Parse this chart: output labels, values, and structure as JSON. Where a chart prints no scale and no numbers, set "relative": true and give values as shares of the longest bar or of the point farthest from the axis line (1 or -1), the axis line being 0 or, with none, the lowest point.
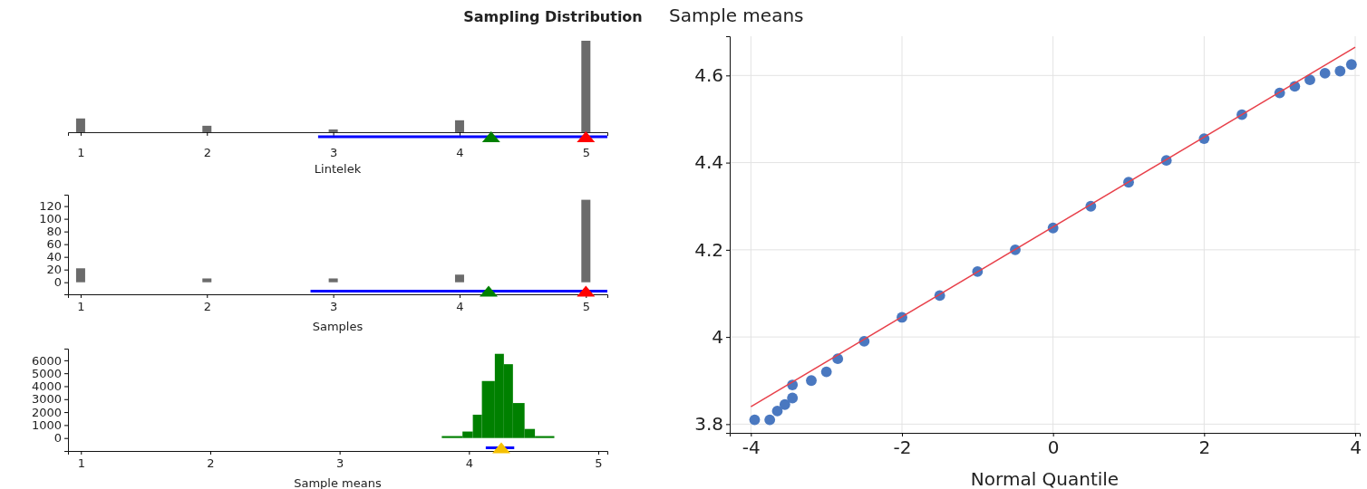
{
  "chart_data": [
    {
      "type": "bar",
      "title": "Sampling Distribution",
      "xlabel": "Lintelek",
      "relative": true,
      "tick_labels": "x",
      "xlim": [
        0.9,
        5.17
      ],
      "xticks": [
        1,
        2,
        3,
        4,
        5
      ],
      "grid": false,
      "series": [
        {
          "color": "#6b6b6b",
          "x": [
            1,
            2,
            3,
            4,
            5
          ],
          "values": [
            0.15,
            0.07,
            0.03,
            0.13,
            1
          ]
        },
        {
          "type": "line",
          "color": "#0000ff",
          "x": [
            2.88,
            5.17
          ],
          "values": [
            -0.05,
            -0.05
          ]
        },
        {
          "type": "scatter",
          "marker": "triangle",
          "color": "#008000",
          "x": [
            4.25
          ],
          "values": [
            -0.05
          ]
        },
        {
          "type": "scatter",
          "marker": "triangle",
          "color": "#ff0000",
          "x": [
            5
          ],
          "values": [
            -0.05
          ]
        }
      ]
    },
    {
      "type": "bar",
      "xlabel": "Samples",
      "xlim": [
        0.9,
        5.17
      ],
      "xticks": [
        1,
        2,
        3,
        4,
        5
      ],
      "ylim": [
        -19,
        138
      ],
      "yticks": [
        0,
        20,
        40,
        60,
        80,
        100,
        120
      ],
      "grid": false,
      "series": [
        {
          "color": "#6b6b6b",
          "x": [
            1,
            2,
            3,
            4,
            5
          ],
          "values": [
            22,
            6,
            6,
            12,
            130
          ]
        },
        {
          "type": "line",
          "color": "#0000ff",
          "x": [
            2.82,
            5.17
          ],
          "values": [
            -14,
            -14
          ]
        },
        {
          "type": "scatter",
          "marker": "triangle",
          "color": "#008000",
          "x": [
            4.23
          ],
          "values": [
            -14
          ]
        },
        {
          "type": "scatter",
          "marker": "triangle",
          "color": "#ff0000",
          "x": [
            5
          ],
          "values": [
            -14
          ]
        }
      ]
    },
    {
      "type": "histogram",
      "xlabel": "Sample means",
      "xlim": [
        0.9,
        5.07
      ],
      "xticks": [
        1,
        2,
        3,
        4,
        5
      ],
      "ylim": [
        -1000,
        6900
      ],
      "yticks": [
        0,
        1000,
        2000,
        3000,
        4000,
        5000,
        6000
      ],
      "grid": false,
      "series": [
        {
          "color": "#008000",
          "bins": [
            3.79,
            3.95,
            4.03,
            4.1,
            4.2,
            4.27,
            4.34,
            4.43,
            4.51,
            4.66
          ],
          "values": [
            150,
            500,
            1800,
            4400,
            6500,
            5700,
            2700,
            700,
            150
          ]
        },
        {
          "type": "line",
          "color": "#0000ff",
          "x": [
            4.13,
            4.35
          ],
          "values": [
            -750,
            -750
          ]
        },
        {
          "type": "scatter",
          "marker": "triangle",
          "color": "#f5c000",
          "x": [
            4.25
          ],
          "values": [
            -750
          ]
        }
      ]
    },
    {
      "type": "scatter",
      "xlabel": "Normal Quantile",
      "ylabel": "Sample means",
      "xlim": [
        -4.28,
        4.06
      ],
      "xticks": [
        -4,
        -2,
        0,
        2,
        4
      ],
      "ylim": [
        3.78,
        4.69
      ],
      "yticks": [
        3.8,
        4,
        4.2,
        4.4,
        4.6
      ],
      "grid": true,
      "series": [
        {
          "marker": "circle",
          "color": "#4a78c0",
          "x": [
            -3.95,
            -3.75,
            -3.65,
            -3.55,
            -3.45,
            -3.45,
            -3.2,
            -3.0,
            -2.85,
            -2.5,
            -2.0,
            -1.5,
            -1.0,
            -0.5,
            0,
            0.5,
            1.0,
            1.5,
            2.0,
            2.5,
            3.0,
            3.2,
            3.4,
            3.6,
            3.8,
            3.95
          ],
          "values": [
            3.81,
            3.81,
            3.83,
            3.845,
            3.86,
            3.89,
            3.9,
            3.92,
            3.95,
            3.99,
            4.045,
            4.095,
            4.15,
            4.2,
            4.25,
            4.3,
            4.355,
            4.405,
            4.455,
            4.51,
            4.56,
            4.575,
            4.59,
            4.605,
            4.61,
            4.625
          ]
        },
        {
          "type": "line",
          "color": "#e8404a",
          "x": [
            -4,
            4.0
          ],
          "values": [
            3.84,
            4.665
          ]
        }
      ]
    }
  ]
}
